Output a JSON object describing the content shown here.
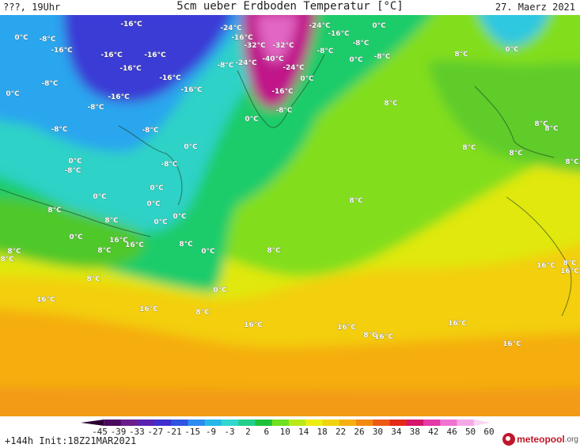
{
  "header": {
    "location": "???, 19Uhr",
    "title": "5cm ueber Erdboden Temperatur [°C]",
    "date": "27. Maerz 2021"
  },
  "map_labels": [
    {
      "text": "-16°C"
    },
    {
      "text": "-24°C"
    },
    {
      "text": "-24°C"
    },
    {
      "text": "0°C"
    },
    {
      "text": "0°C"
    },
    {
      "text": "-8°C"
    },
    {
      "text": "-16°C"
    },
    {
      "text": "-16°C"
    },
    {
      "text": "-32°C"
    },
    {
      "text": "-32°C"
    },
    {
      "text": "-16°C"
    },
    {
      "text": "-8°C"
    },
    {
      "text": "-16°C"
    },
    {
      "text": "-16°C"
    },
    {
      "text": "-8°C"
    },
    {
      "text": "-24°C"
    },
    {
      "text": "-40°C"
    },
    {
      "text": "-8°C"
    },
    {
      "text": "0°C"
    },
    {
      "text": "-8°C"
    },
    {
      "text": "0°C"
    },
    {
      "text": "-8°C"
    },
    {
      "text": "-24°C"
    },
    {
      "text": "8°C"
    },
    {
      "text": "-16°C"
    },
    {
      "text": "-16°C"
    },
    {
      "text": "0°C"
    },
    {
      "text": "-8°C"
    },
    {
      "text": "-16°C"
    },
    {
      "text": "-16°C"
    },
    {
      "text": "0°C"
    },
    {
      "text": "-16°C"
    },
    {
      "text": "8°C"
    },
    {
      "text": "-8°C"
    },
    {
      "text": "-8°C"
    },
    {
      "text": "0°C"
    },
    {
      "text": "8°C"
    },
    {
      "text": "-8°C"
    },
    {
      "text": "-8°C"
    },
    {
      "text": "8°C"
    },
    {
      "text": "0°C"
    },
    {
      "text": "8°C"
    },
    {
      "text": "8°C"
    },
    {
      "text": "0°C"
    },
    {
      "text": "-8°C"
    },
    {
      "text": "8°C"
    },
    {
      "text": "0°C"
    },
    {
      "text": "0°C"
    },
    {
      "text": "0°C"
    },
    {
      "text": "8°C"
    },
    {
      "text": "0°C"
    },
    {
      "text": "8°C"
    },
    {
      "text": "0°C"
    },
    {
      "text": "8°C"
    },
    {
      "text": "8°C"
    },
    {
      "text": "0°C"
    },
    {
      "text": "8°C"
    },
    {
      "text": "8°C"
    },
    {
      "text": "8°C"
    },
    {
      "text": "8°C"
    },
    {
      "text": "16°C"
    },
    {
      "text": "8°C"
    },
    {
      "text": "0°C"
    },
    {
      "text": "8°C"
    },
    {
      "text": "16°C"
    },
    {
      "text": "16°C"
    },
    {
      "text": "8°C"
    },
    {
      "text": "0°C"
    },
    {
      "text": "16°C"
    },
    {
      "text": "16°C"
    },
    {
      "text": "8°C"
    },
    {
      "text": "16°C"
    },
    {
      "text": "16°C"
    },
    {
      "text": "16°C"
    },
    {
      "text": "16°C"
    },
    {
      "text": "16°C"
    },
    {
      "text": "16°C"
    }
  ],
  "legend": {
    "labels": [
      "-45",
      "-39",
      "-33",
      "-27",
      "-21",
      "-15",
      "-9",
      "-3",
      "2",
      "6",
      "10",
      "14",
      "18",
      "22",
      "26",
      "30",
      "34",
      "38",
      "42",
      "46",
      "50",
      "60"
    ],
    "colors": [
      "#2a0033",
      "#4a0a5e",
      "#6a1f8c",
      "#5a23b0",
      "#3f2fd0",
      "#2f55e0",
      "#2a8cf0",
      "#27b8e8",
      "#2fd8cf",
      "#20d08a",
      "#1ec23a",
      "#6fe01e",
      "#b9ea18",
      "#eeee10",
      "#f2d40e",
      "#f5b010",
      "#f38a12",
      "#ee5a14",
      "#e62a18",
      "#d6166a",
      "#e63aaa",
      "#ee74d0",
      "#f5a8e6",
      "#fad6f2"
    ]
  },
  "footer": {
    "run_info": "+144h Init:18Z21MAR2021",
    "logo_name": "meteopool",
    "logo_tld": ".org"
  }
}
